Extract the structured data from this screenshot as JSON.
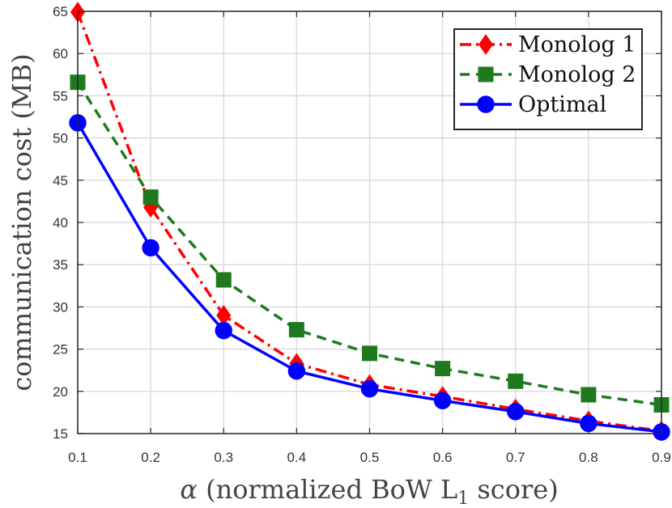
{
  "chart_data": {
    "type": "line",
    "title": "",
    "xlabel_symbol": "α",
    "xlabel_text": " (normalized BoW L",
    "xlabel_subscript": "1",
    "xlabel_suffix": " score)",
    "ylabel": "communication cost (MB)",
    "xlim": [
      0.1,
      0.9
    ],
    "ylim": [
      15,
      65
    ],
    "xticks": [
      "0.1",
      "0.2",
      "0.3",
      "0.4",
      "0.5",
      "0.6",
      "0.7",
      "0.8",
      "0.9"
    ],
    "yticks": [
      "15",
      "20",
      "25",
      "30",
      "35",
      "40",
      "45",
      "50",
      "55",
      "60",
      "65"
    ],
    "grid": true,
    "legend_position": "top-right",
    "x": [
      0.1,
      0.2,
      0.3,
      0.4,
      0.5,
      0.6,
      0.7,
      0.8,
      0.9
    ],
    "series": [
      {
        "name": "Monolog 1",
        "color": "#ff0000",
        "line_style": "dashdot",
        "marker": "diamond",
        "values": [
          64.9,
          41.8,
          29.0,
          23.3,
          20.8,
          19.4,
          17.9,
          16.5,
          15.3
        ]
      },
      {
        "name": "Monolog 2",
        "color": "#1f7a1f",
        "line_style": "dashed",
        "marker": "square",
        "values": [
          56.6,
          43.0,
          33.2,
          27.3,
          24.5,
          22.7,
          21.2,
          19.6,
          18.4
        ]
      },
      {
        "name": "Optimal",
        "color": "#0000ff",
        "line_style": "solid",
        "marker": "circle",
        "values": [
          51.8,
          37.0,
          27.2,
          22.4,
          20.3,
          18.9,
          17.6,
          16.2,
          15.2
        ]
      }
    ]
  }
}
